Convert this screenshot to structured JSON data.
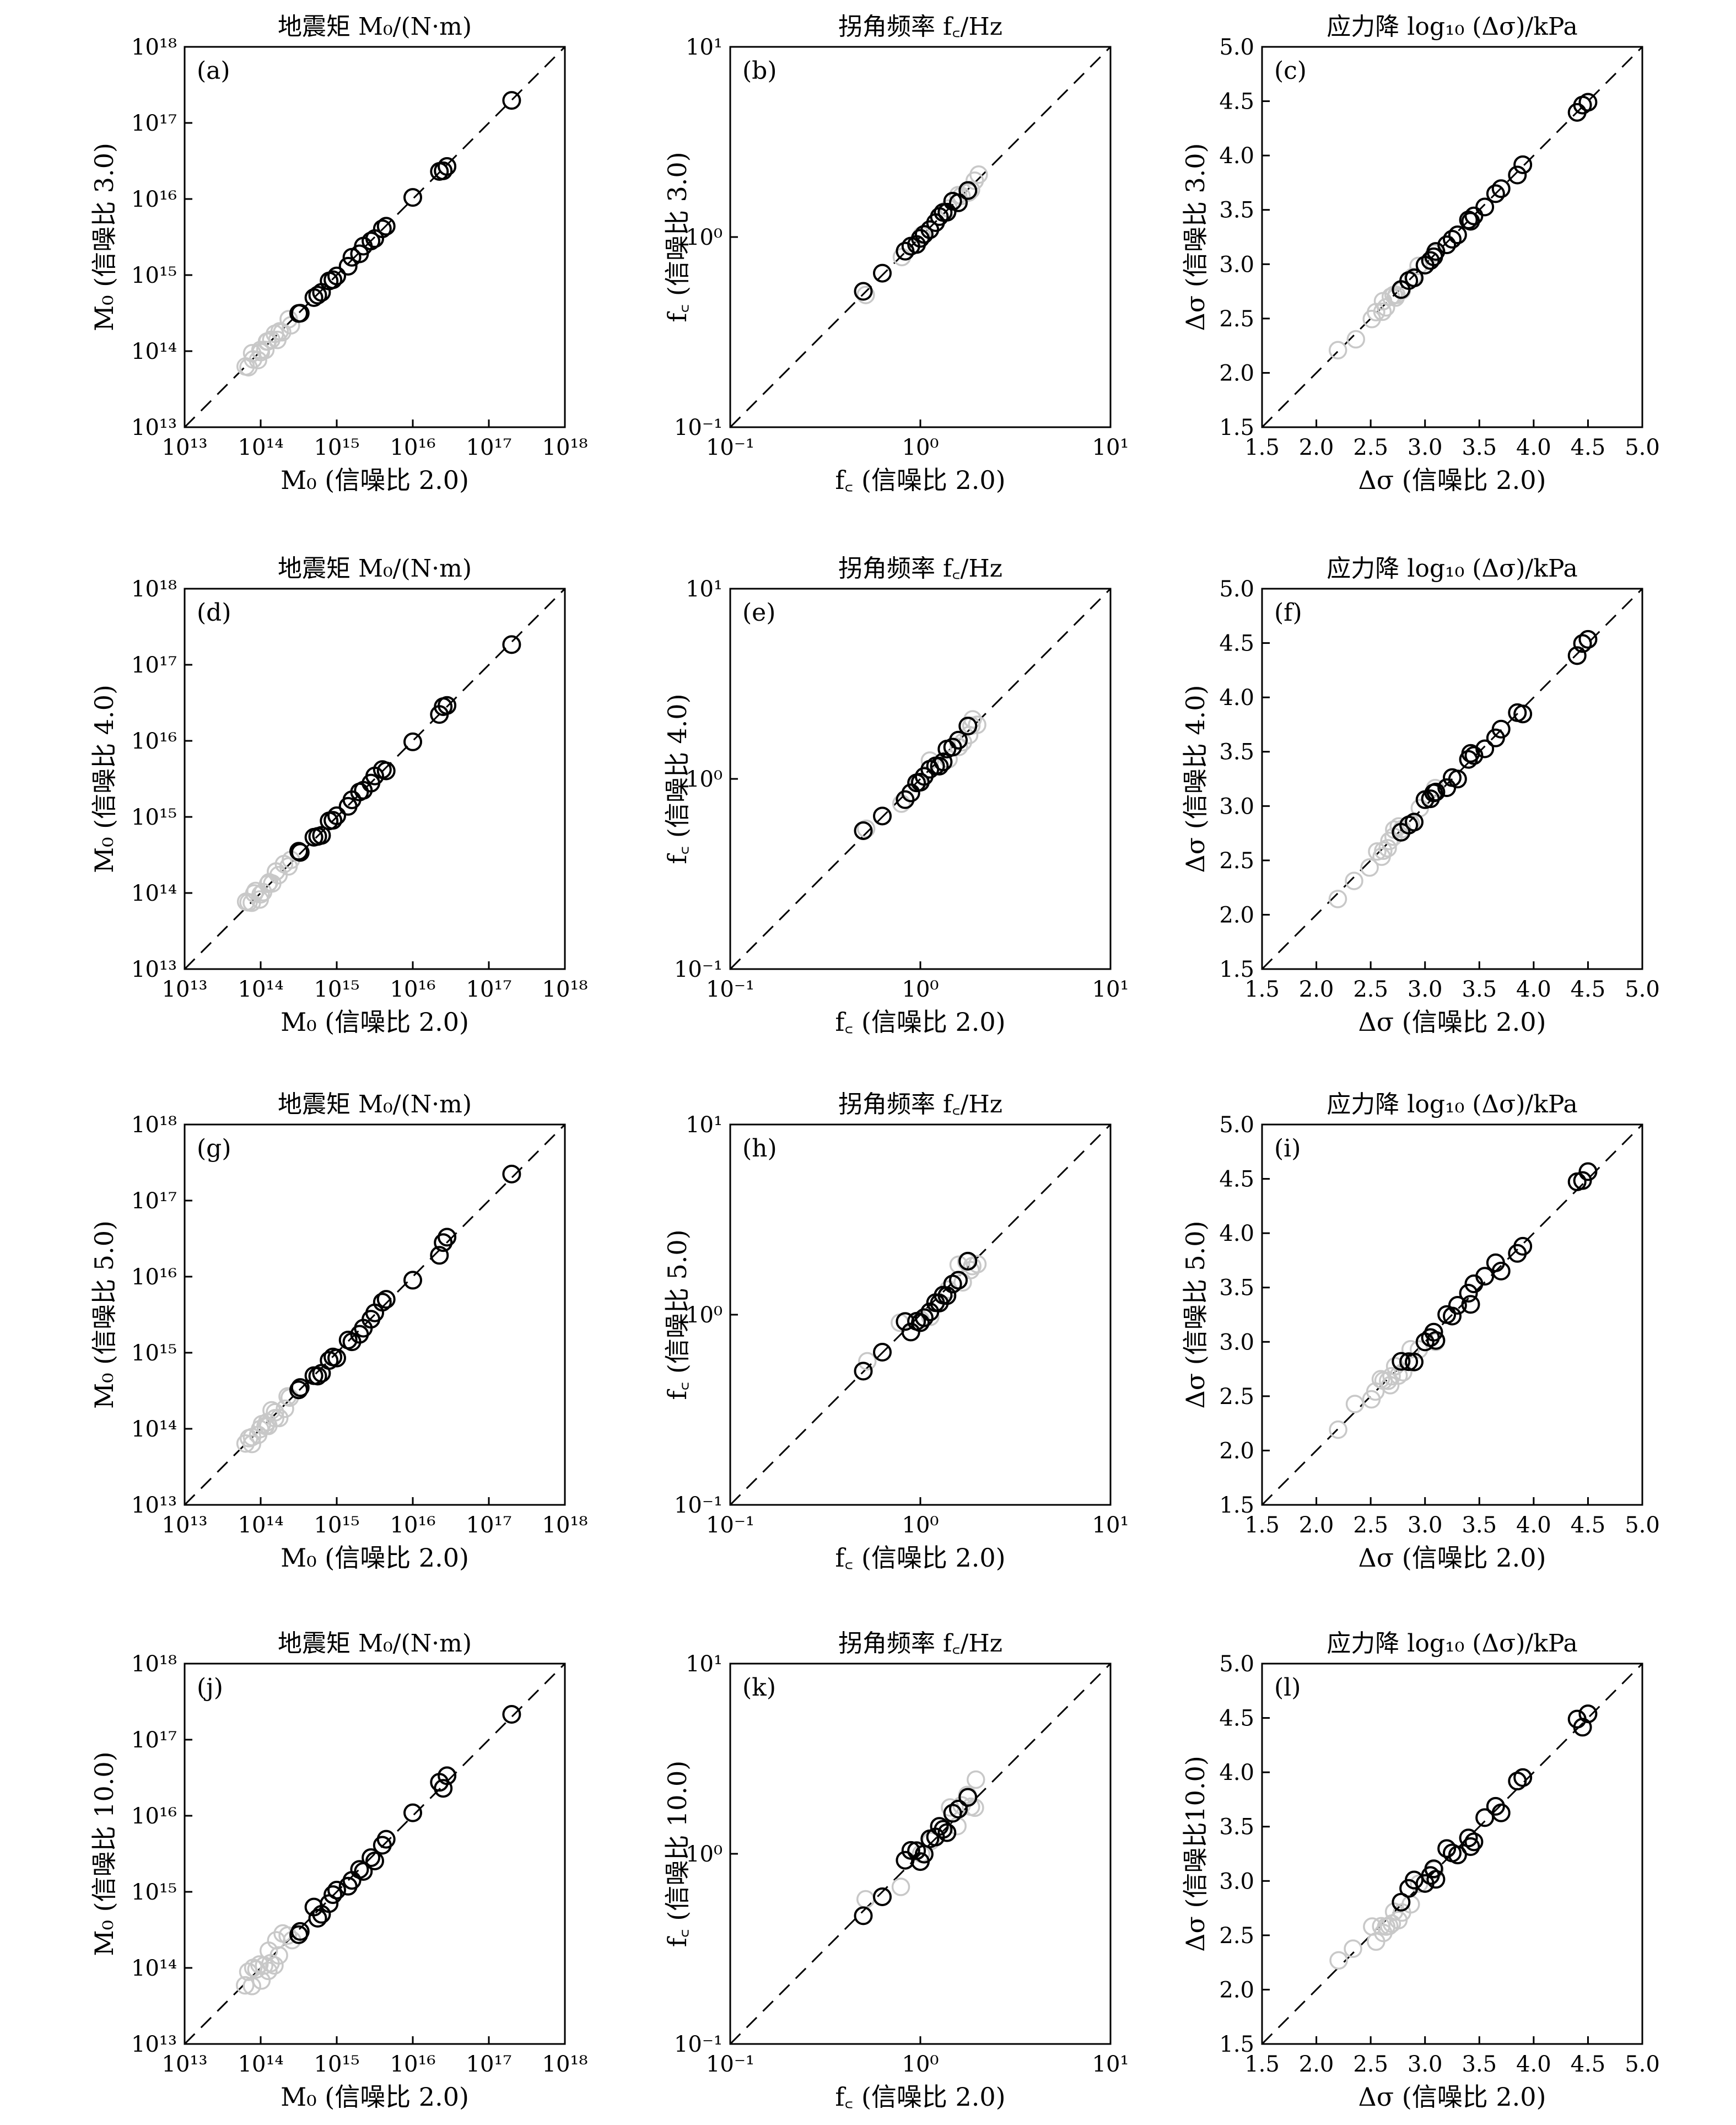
{
  "chart_data": [
    {
      "id": "a",
      "type": "scatter",
      "panel_label": "(a)",
      "title": "地震矩 M₀/(N·m)",
      "xlabel": "M₀ (信噪比 2.0)",
      "ylabel": "M₀ (信噪比 3.0)",
      "scale": "log",
      "xlim": [
        10000000000000.0,
        1e+18
      ],
      "ylim": [
        10000000000000.0,
        1e+18
      ],
      "xticks": [
        "10¹³",
        "10¹⁴",
        "10¹⁵",
        "10¹⁶",
        "10¹⁷",
        "10¹⁸"
      ],
      "yticks": [
        "10¹³",
        "10¹⁴",
        "10¹⁵",
        "10¹⁶",
        "10¹⁷",
        "10¹⁸"
      ],
      "reference_line": "y = x (dashed)",
      "grey_spread": 0.08,
      "black_spread": 0.04
    },
    {
      "id": "b",
      "type": "scatter",
      "panel_label": "(b)",
      "title": "拐角频率 f꜀/Hz",
      "xlabel": "f꜀ (信噪比 2.0)",
      "ylabel": "f꜀ (信噪比 3.0)",
      "scale": "log",
      "xlim": [
        0.1,
        10
      ],
      "ylim": [
        0.1,
        10
      ],
      "xticks": [
        "10⁻¹",
        "10⁰",
        "10¹"
      ],
      "yticks": [
        "10⁻¹",
        "10⁰",
        "10¹"
      ],
      "reference_line": "y = x (dashed)",
      "grey_spread": 0.03,
      "black_spread": 0.02
    },
    {
      "id": "c",
      "type": "scatter",
      "panel_label": "(c)",
      "title": "应力降 log₁₀ (Δσ)/kPa",
      "xlabel": "Δσ (信噪比 2.0)",
      "ylabel": "Δσ (信噪比 3.0)",
      "scale": "linear",
      "xlim": [
        1.5,
        5.0
      ],
      "ylim": [
        1.5,
        5.0
      ],
      "xticks": [
        "1.5",
        "2.0",
        "2.5",
        "3.0",
        "3.5",
        "4.0",
        "4.5",
        "5.0"
      ],
      "yticks": [
        "1.5",
        "2.0",
        "2.5",
        "3.0",
        "3.5",
        "4.0",
        "4.5",
        "5.0"
      ],
      "reference_line": "y = x (dashed)",
      "grey_spread": 0.05,
      "black_spread": 0.03
    },
    {
      "id": "d",
      "type": "scatter",
      "panel_label": "(d)",
      "title": "地震矩 M₀/(N·m)",
      "xlabel": "M₀ (信噪比 2.0)",
      "ylabel": "M₀ (信噪比 4.0)",
      "scale": "log",
      "xlim": [
        10000000000000.0,
        1e+18
      ],
      "ylim": [
        10000000000000.0,
        1e+18
      ],
      "xticks": [
        "10¹³",
        "10¹⁴",
        "10¹⁵",
        "10¹⁶",
        "10¹⁷",
        "10¹⁸"
      ],
      "yticks": [
        "10¹³",
        "10¹⁴",
        "10¹⁵",
        "10¹⁶",
        "10¹⁷",
        "10¹⁸"
      ],
      "reference_line": "y = x (dashed)",
      "grey_spread": 0.1,
      "black_spread": 0.05
    },
    {
      "id": "e",
      "type": "scatter",
      "panel_label": "(e)",
      "title": "拐角频率 f꜀/Hz",
      "xlabel": "f꜀ (信噪比 2.0)",
      "ylabel": "f꜀ (信噪比 4.0)",
      "scale": "log",
      "xlim": [
        0.1,
        10
      ],
      "ylim": [
        0.1,
        10
      ],
      "xticks": [
        "10⁻¹",
        "10⁰",
        "10¹"
      ],
      "yticks": [
        "10⁻¹",
        "10⁰",
        "10¹"
      ],
      "reference_line": "y = x (dashed)",
      "grey_spread": 0.05,
      "black_spread": 0.035
    },
    {
      "id": "f",
      "type": "scatter",
      "panel_label": "(f)",
      "title": "应力降 log₁₀ (Δσ)/kPa",
      "xlabel": "Δσ (信噪比 2.0)",
      "ylabel": "Δσ (信噪比 4.0)",
      "scale": "linear",
      "xlim": [
        1.5,
        5.0
      ],
      "ylim": [
        1.5,
        5.0
      ],
      "xticks": [
        "1.5",
        "2.0",
        "2.5",
        "3.0",
        "3.5",
        "4.0",
        "4.5",
        "5.0"
      ],
      "yticks": [
        "1.5",
        "2.0",
        "2.5",
        "3.0",
        "3.5",
        "4.0",
        "4.5",
        "5.0"
      ],
      "reference_line": "y = x (dashed)",
      "grey_spread": 0.07,
      "black_spread": 0.07
    },
    {
      "id": "g",
      "type": "scatter",
      "panel_label": "(g)",
      "title": "地震矩 M₀/(N·m)",
      "xlabel": "M₀ (信噪比 2.0)",
      "ylabel": "M₀ (信噪比 5.0)",
      "scale": "log",
      "xlim": [
        10000000000000.0,
        1e+18
      ],
      "ylim": [
        10000000000000.0,
        1e+18
      ],
      "xticks": [
        "10¹³",
        "10¹⁴",
        "10¹⁵",
        "10¹⁶",
        "10¹⁷",
        "10¹⁸"
      ],
      "yticks": [
        "10¹³",
        "10¹⁴",
        "10¹⁵",
        "10¹⁶",
        "10¹⁷",
        "10¹⁸"
      ],
      "reference_line": "y = x (dashed)",
      "grey_spread": 0.12,
      "black_spread": 0.07
    },
    {
      "id": "h",
      "type": "scatter",
      "panel_label": "(h)",
      "title": "拐角频率 f꜀/Hz",
      "xlabel": "f꜀ (信噪比 2.0)",
      "ylabel": "f꜀ (信噪比 5.0)",
      "scale": "log",
      "xlim": [
        0.1,
        10
      ],
      "ylim": [
        0.1,
        10
      ],
      "xticks": [
        "10⁻¹",
        "10⁰",
        "10¹"
      ],
      "yticks": [
        "10⁻¹",
        "10⁰",
        "10¹"
      ],
      "reference_line": "y = x (dashed)",
      "grey_spread": 0.07,
      "black_spread": 0.05
    },
    {
      "id": "i",
      "type": "scatter",
      "panel_label": "(i)",
      "title": "应力降 log₁₀ (Δσ)/kPa",
      "xlabel": "Δσ (信噪比 2.0)",
      "ylabel": "Δσ (信噪比 5.0)",
      "scale": "linear",
      "xlim": [
        1.5,
        5.0
      ],
      "ylim": [
        1.5,
        5.0
      ],
      "xticks": [
        "1.5",
        "2.0",
        "2.5",
        "3.0",
        "3.5",
        "4.0",
        "4.5",
        "5.0"
      ],
      "yticks": [
        "1.5",
        "2.0",
        "2.5",
        "3.0",
        "3.5",
        "4.0",
        "4.5",
        "5.0"
      ],
      "reference_line": "y = x (dashed)",
      "grey_spread": 0.1,
      "black_spread": 0.09
    },
    {
      "id": "j",
      "type": "scatter",
      "panel_label": "(j)",
      "title": "地震矩 M₀/(N·m)",
      "xlabel": "M₀ (信噪比 2.0)",
      "ylabel": "M₀ (信噪比 10.0)",
      "scale": "log",
      "xlim": [
        10000000000000.0,
        1e+18
      ],
      "ylim": [
        10000000000000.0,
        1e+18
      ],
      "xticks": [
        "10¹³",
        "10¹⁴",
        "10¹⁵",
        "10¹⁶",
        "10¹⁷",
        "10¹⁸"
      ],
      "yticks": [
        "10¹³",
        "10¹⁴",
        "10¹⁵",
        "10¹⁶",
        "10¹⁷",
        "10¹⁸"
      ],
      "reference_line": "y = x (dashed)",
      "grey_spread": 0.17,
      "black_spread": 0.1
    },
    {
      "id": "k",
      "type": "scatter",
      "panel_label": "(k)",
      "title": "拐角频率 f꜀/Hz",
      "xlabel": "f꜀ (信噪比 2.0)",
      "ylabel": "f꜀ (信噪比 10.0)",
      "scale": "log",
      "xlim": [
        0.1,
        10
      ],
      "ylim": [
        0.1,
        10
      ],
      "xticks": [
        "10⁻¹",
        "10⁰",
        "10¹"
      ],
      "yticks": [
        "10⁻¹",
        "10⁰",
        "10¹"
      ],
      "reference_line": "y = x (dashed)",
      "grey_spread": 0.1,
      "black_spread": 0.07
    },
    {
      "id": "l",
      "type": "scatter",
      "panel_label": "(l)",
      "title": "应力降 log₁₀ (Δσ)/kPa",
      "xlabel": "Δσ (信噪比 2.0)",
      "ylabel": "Δσ (信噪比10.0)",
      "scale": "linear",
      "xlim": [
        1.5,
        5.0
      ],
      "ylim": [
        1.5,
        5.0
      ],
      "xticks": [
        "1.5",
        "2.0",
        "2.5",
        "3.0",
        "3.5",
        "4.0",
        "4.5",
        "5.0"
      ],
      "yticks": [
        "1.5",
        "2.0",
        "2.5",
        "3.0",
        "3.5",
        "4.0",
        "4.5",
        "5.0"
      ],
      "reference_line": "y = x (dashed)",
      "grey_spread": 0.14,
      "black_spread": 0.12
    }
  ],
  "data_series": {
    "M0_black_log10_x": [
      14.5,
      14.52,
      14.7,
      14.75,
      14.8,
      14.9,
      14.95,
      15.0,
      15.15,
      15.2,
      15.3,
      15.35,
      15.45,
      15.5,
      15.6,
      15.65,
      16.0,
      16.35,
      16.4,
      16.45,
      17.3
    ],
    "M0_grey_log10_x": [
      13.8,
      13.85,
      13.9,
      13.95,
      14.0,
      14.05,
      14.1,
      14.15,
      14.2,
      14.25,
      14.3,
      14.35,
      14.4,
      13.9,
      14.0,
      14.1,
      14.2
    ],
    "fc_black_log10_x": [
      -0.3,
      -0.2,
      -0.08,
      -0.05,
      -0.02,
      0.0,
      0.02,
      0.05,
      0.08,
      0.1,
      0.12,
      0.14,
      0.17,
      0.2,
      0.25
    ],
    "fc_grey_log10_x": [
      -0.28,
      -0.1,
      0.0,
      0.05,
      0.15,
      0.2,
      0.22,
      0.25,
      0.27,
      0.28,
      0.3
    ],
    "sd_black_x": [
      2.78,
      2.85,
      2.9,
      3.0,
      3.05,
      3.08,
      3.1,
      3.2,
      3.25,
      3.3,
      3.4,
      3.42,
      3.45,
      3.55,
      3.65,
      3.7,
      3.85,
      3.9,
      4.4,
      4.45,
      4.5
    ],
    "sd_grey_x": [
      2.2,
      2.35,
      2.5,
      2.55,
      2.6,
      2.62,
      2.65,
      2.68,
      2.7,
      2.72,
      2.75,
      2.8,
      2.88,
      2.95,
      3.1
    ]
  },
  "colors": {
    "black_marker": "#000000",
    "grey_marker": "#c8c8c8",
    "axis": "#000000"
  }
}
